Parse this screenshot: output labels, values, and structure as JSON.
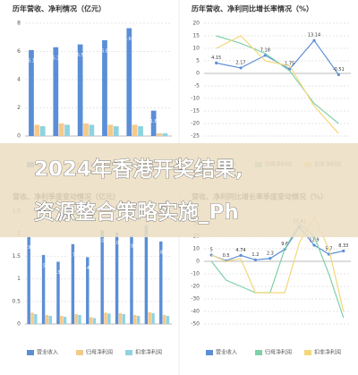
{
  "chart_data": [
    {
      "type": "bar",
      "title": "历年营收、净利情况（亿元）",
      "categories": [
        null,
        null,
        null,
        null,
        null,
        null
      ],
      "ylim": [
        0,
        8
      ],
      "yticks": [
        0,
        2,
        4,
        6,
        8
      ],
      "grid": true,
      "series": [
        {
          "name": "营业收入",
          "color": "#5b8ed6",
          "values": [
            6.1,
            6.3,
            6.5,
            6.8,
            7.65,
            1.8
          ]
        },
        {
          "name": "归母净利润",
          "color": "#f5c98a",
          "values": [
            0.8,
            0.9,
            0.9,
            0.8,
            0.8,
            0.2
          ]
        },
        {
          "name": "扣非净利润",
          "color": "#8fd3e0",
          "values": [
            0.7,
            0.8,
            0.8,
            0.7,
            0.7,
            0.2
          ]
        }
      ]
    },
    {
      "type": "line",
      "title": "历年营收、净利同比增长率情况（%）",
      "categories": [
        null,
        null,
        null,
        null,
        null,
        null
      ],
      "ylim": [
        -25,
        20
      ],
      "yticks": [
        -25,
        -20,
        -15,
        -10,
        -5,
        0,
        5,
        10,
        15,
        20
      ],
      "grid": true,
      "series": [
        {
          "name": "营业收入",
          "color": "#5b8ed6",
          "values": [
            4.15,
            2.17,
            7.18,
            1.75,
            13.14,
            -0.51
          ]
        },
        {
          "name": "归母净利润",
          "color": "#7fd1a8",
          "values": [
            15,
            12,
            8,
            1,
            -12,
            -20
          ]
        },
        {
          "name": "扣非净利润",
          "color": "#f3d77a",
          "values": [
            10,
            15,
            5,
            3,
            -13,
            -24
          ]
        }
      ]
    },
    {
      "type": "bar",
      "title": "营收、净利季度变动情况（亿元）",
      "categories": [
        null,
        null,
        null,
        null,
        null,
        null,
        null,
        null,
        null,
        null
      ],
      "ylim": [
        0,
        2.5
      ],
      "yticks": [
        0,
        0.5,
        1,
        1.5,
        2,
        2.5
      ],
      "grid": true,
      "series": [
        {
          "name": "营业收入",
          "color": "#5b8ed6",
          "values": [
            1.93,
            1.53,
            1.38,
            1.77,
            1.48,
            2.08,
            2.03,
            1.96,
            2.19,
            1.83
          ]
        },
        {
          "name": "归母净利润",
          "color": "#f5c98a",
          "values": [
            0.25,
            0.2,
            0.18,
            0.22,
            0.15,
            0.25,
            0.24,
            0.2,
            0.26,
            0.2
          ]
        },
        {
          "name": "扣非净利润",
          "color": "#8fd3e0",
          "values": [
            0.22,
            0.18,
            0.16,
            0.2,
            0.13,
            0.23,
            0.22,
            0.18,
            0.24,
            0.18
          ]
        }
      ]
    },
    {
      "type": "line",
      "title": "营收、净利同比增长率季度变动情况（%）",
      "categories": [
        null,
        null,
        null,
        null,
        null,
        null,
        null,
        null,
        null,
        null
      ],
      "ylim": [
        -50,
        40
      ],
      "yticks": [
        -50,
        -40,
        -30,
        -20,
        -10,
        0,
        10,
        20,
        30,
        40
      ],
      "grid": true,
      "series": [
        {
          "name": "营业收入",
          "color": "#5b8ed6",
          "values": [
            5,
            0.5,
            4.74,
            1.2,
            2.3,
            9.6,
            27.41,
            12.9,
            5.7,
            8.33
          ]
        },
        {
          "name": "归母净利润",
          "color": "#7fd1a8",
          "values": [
            0,
            -15,
            -20,
            -25,
            -25,
            10,
            30,
            20,
            -10,
            -45
          ]
        },
        {
          "name": "扣非净利润",
          "color": "#f3d77a",
          "values": [
            5,
            0,
            2,
            -25,
            -25,
            -25,
            15,
            35,
            10,
            -40
          ]
        }
      ]
    }
  ],
  "banner": [
    "2024年香港开奖结果,",
    "资源整合策略实施_Ph"
  ]
}
